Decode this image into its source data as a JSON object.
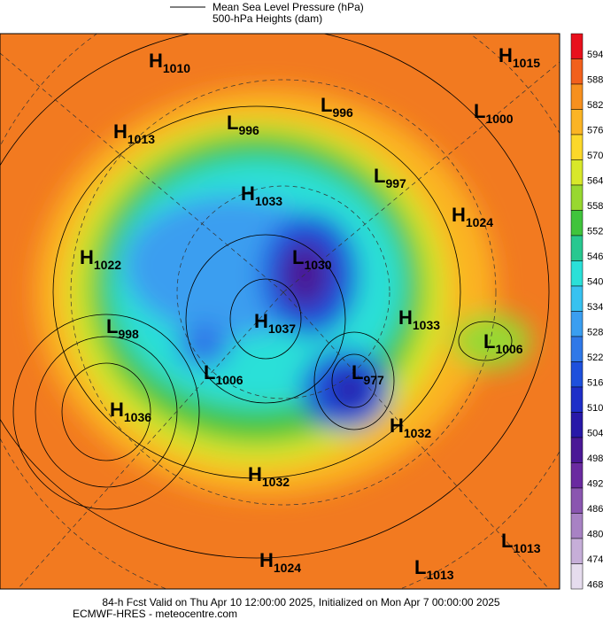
{
  "legend": {
    "pressure": "Mean Sea Level Pressure (hPa)",
    "heights": "500-hPa Heights (dam)"
  },
  "centers": [
    {
      "type": "H",
      "value": 1010
    },
    {
      "type": "H",
      "value": 1015
    },
    {
      "type": "L",
      "value": 996
    },
    {
      "type": "L",
      "value": 1000
    },
    {
      "type": "H",
      "value": 1013
    },
    {
      "type": "L",
      "value": 996
    },
    {
      "type": "L",
      "value": 997
    },
    {
      "type": "H",
      "value": 1033
    },
    {
      "type": "H",
      "value": 1024
    },
    {
      "type": "H",
      "value": 1022
    },
    {
      "type": "L",
      "value": 1030
    },
    {
      "type": "H",
      "value": 1037
    },
    {
      "type": "H",
      "value": 1033
    },
    {
      "type": "L",
      "value": 998
    },
    {
      "type": "L",
      "value": 1006
    },
    {
      "type": "L",
      "value": 1006
    },
    {
      "type": "L",
      "value": 977
    },
    {
      "type": "H",
      "value": 1036
    },
    {
      "type": "H",
      "value": 1032
    },
    {
      "type": "H",
      "value": 1032
    },
    {
      "type": "H",
      "value": 1024
    },
    {
      "type": "L",
      "value": 1013
    },
    {
      "type": "L",
      "value": 1013
    }
  ],
  "colorbar": {
    "labels": [
      594,
      588,
      582,
      576,
      570,
      564,
      558,
      552,
      546,
      540,
      534,
      528,
      522,
      516,
      510,
      504,
      498,
      492,
      486,
      480,
      474,
      468
    ],
    "colors": [
      "#e8101c",
      "#f2601c",
      "#f7901e",
      "#fbb424",
      "#fcd82a",
      "#d8e82a",
      "#98d830",
      "#40c43c",
      "#28c890",
      "#2ae0d8",
      "#38c2f0",
      "#3a9ef0",
      "#2f78e8",
      "#1e50dc",
      "#1e2ec8",
      "#2818a8",
      "#4a1896",
      "#6a2aa0",
      "#8a56b0",
      "#a882c4",
      "#c6aed8",
      "#e6dcee"
    ]
  },
  "footer": {
    "line1": "84-h Fcst Valid on Thu Apr 10 12:00:00 2025, Initialized on Mon Apr  7 00:00:00 2025",
    "line2": "ECMWF-HRES  - meteocentre.com"
  }
}
